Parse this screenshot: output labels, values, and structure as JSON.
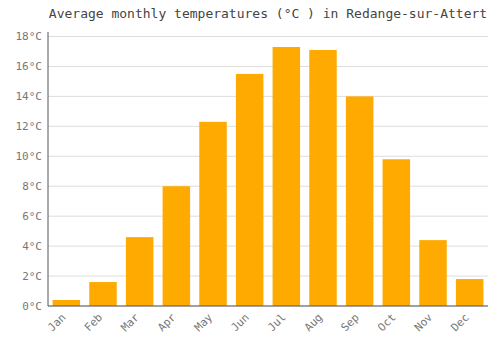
{
  "chart_data": {
    "type": "bar",
    "title": "Average monthly temperatures (°C ) in Redange-sur-Attert",
    "categories": [
      "Jan",
      "Feb",
      "Mar",
      "Apr",
      "May",
      "Jun",
      "Jul",
      "Aug",
      "Sep",
      "Oct",
      "Nov",
      "Dec"
    ],
    "values": [
      0.4,
      1.6,
      4.6,
      8.0,
      12.3,
      15.5,
      17.3,
      17.1,
      14.0,
      9.8,
      4.4,
      1.8
    ],
    "color": "#FFAA00",
    "ylim": [
      0,
      18.3
    ],
    "yticks": [
      {
        "value": 0,
        "label": "0°C"
      },
      {
        "value": 2,
        "label": "2°C"
      },
      {
        "value": 4,
        "label": "4°C"
      },
      {
        "value": 6,
        "label": "6°C"
      },
      {
        "value": 8,
        "label": "8°C"
      },
      {
        "value": 10,
        "label": "10°C"
      },
      {
        "value": 12,
        "label": "12°C"
      },
      {
        "value": 14,
        "label": "14°C"
      },
      {
        "value": 16,
        "label": "16°C"
      },
      {
        "value": 18,
        "label": "18°C"
      }
    ],
    "grid": true
  }
}
